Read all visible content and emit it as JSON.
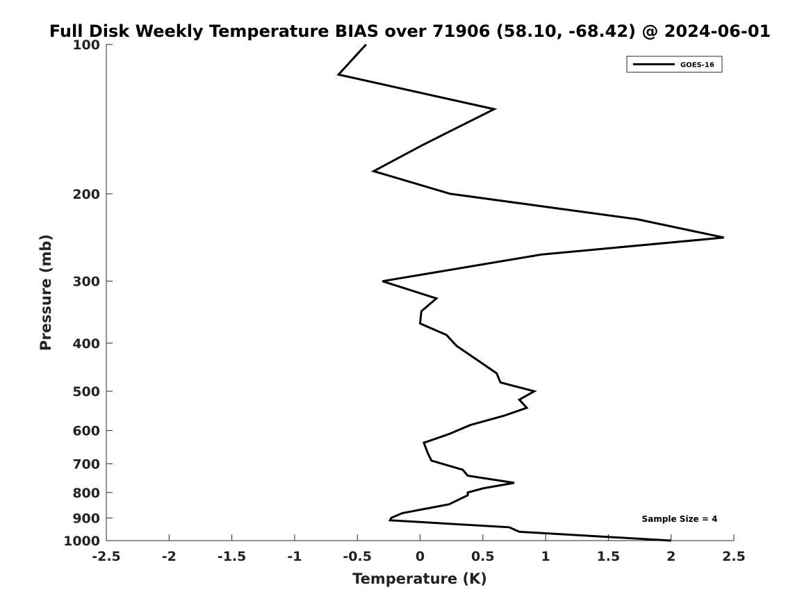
{
  "chart_data": {
    "type": "line",
    "title": "Full Disk Weekly Temperature BIAS over 71906 (58.10, -68.42) @ 2024-06-01",
    "xlabel": "Temperature (K)",
    "ylabel": "Pressure (mb)",
    "xlim": [
      -2.5,
      2.5
    ],
    "ylim": [
      1000,
      100
    ],
    "y_scale": "log",
    "x_ticks": [
      -2.5,
      -2,
      -1.5,
      -1,
      -0.5,
      0,
      0.5,
      1,
      1.5,
      2,
      2.5
    ],
    "x_tick_labels": [
      "-2.5",
      "-2",
      "-1.5",
      "-1",
      "-0.5",
      "0",
      "0.5",
      "1",
      "1.5",
      "2",
      "2.5"
    ],
    "y_ticks": [
      100,
      200,
      300,
      400,
      500,
      600,
      700,
      800,
      900,
      1000
    ],
    "y_tick_labels": [
      "100",
      "200",
      "300",
      "400",
      "500",
      "600",
      "700",
      "800",
      "900",
      "1000"
    ],
    "grid": false,
    "legend_position": "top-right",
    "series": [
      {
        "name": "GOES-16",
        "color": "#000000",
        "x": [
          -0.43,
          -0.65,
          0.59,
          0.23,
          0.01,
          -0.37,
          0.24,
          1.73,
          2.42,
          0.97,
          -0.3,
          0.13,
          0.01,
          0.0,
          0.21,
          0.29,
          0.47,
          0.61,
          0.64,
          0.91,
          0.79,
          0.85,
          0.67,
          0.4,
          0.23,
          0.03,
          0.06,
          0.09,
          0.34,
          0.38,
          0.75,
          0.5,
          0.38,
          0.38,
          0.23,
          -0.14,
          -0.23,
          -0.24,
          0.71,
          0.79,
          2.0
        ],
        "y": [
          100,
          115,
          135,
          150,
          160,
          180,
          200,
          225,
          245,
          265,
          300,
          325,
          345,
          365,
          385,
          405,
          435,
          460,
          480,
          500,
          520,
          540,
          560,
          585,
          610,
          635,
          665,
          690,
          720,
          740,
          765,
          785,
          800,
          810,
          845,
          880,
          900,
          910,
          940,
          960,
          1000
        ]
      }
    ],
    "annotations": [
      "Sample Size = 4"
    ]
  }
}
